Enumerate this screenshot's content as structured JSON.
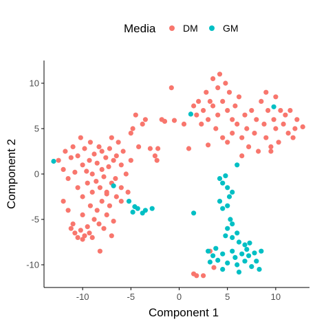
{
  "chart_data": {
    "type": "scatter",
    "xlabel": "Component 1",
    "ylabel": "Component 2",
    "xlim": [
      -14,
      13.5
    ],
    "ylim": [
      -12.5,
      12.5
    ],
    "xticks": [
      -10,
      -5,
      0,
      5,
      10
    ],
    "yticks": [
      -10,
      -5,
      0,
      5,
      10
    ],
    "grid": false,
    "legend": {
      "title": "Media",
      "position": "top"
    },
    "series": [
      {
        "name": "DM",
        "color": "#F8766D",
        "points": [
          [
            -12.5,
            1.5
          ],
          [
            -12,
            0.5
          ],
          [
            -11.8,
            2.5
          ],
          [
            -11.5,
            -0.5
          ],
          [
            -11.2,
            1.8
          ],
          [
            -11,
            3
          ],
          [
            -10.8,
            0.2
          ],
          [
            -10.5,
            2
          ],
          [
            -10.5,
            -1.5
          ],
          [
            -10.2,
            4
          ],
          [
            -10,
            1
          ],
          [
            -10,
            -2.5
          ],
          [
            -9.8,
            2.8
          ],
          [
            -9.6,
            0.3
          ],
          [
            -9.5,
            -1
          ],
          [
            -9.3,
            1.5
          ],
          [
            -9.2,
            3.5
          ],
          [
            -9,
            0
          ],
          [
            -9,
            -2
          ],
          [
            -8.8,
            2.2
          ],
          [
            -8.6,
            -0.8
          ],
          [
            -8.5,
            1.2
          ],
          [
            -8.3,
            3
          ],
          [
            -8.2,
            -1.5
          ],
          [
            -8,
            0.5
          ],
          [
            -8,
            2.5
          ],
          [
            -7.8,
            -0.3
          ],
          [
            -7.6,
            1.8
          ],
          [
            -7.5,
            -2.2
          ],
          [
            -7.3,
            0.8
          ],
          [
            -7.2,
            2.8
          ],
          [
            -7,
            -1
          ],
          [
            -7,
            4
          ],
          [
            -6.8,
            1.5
          ],
          [
            -6.6,
            -0.5
          ],
          [
            -6.5,
            2
          ],
          [
            -6.3,
            3.5
          ],
          [
            -6,
            1
          ],
          [
            -6,
            -1.5
          ],
          [
            -5.8,
            2.5
          ],
          [
            -5.5,
            0
          ],
          [
            -5.3,
            -2
          ],
          [
            -5,
            4.5
          ],
          [
            -5,
            1.5
          ],
          [
            -4.8,
            5
          ],
          [
            -4.5,
            6.5
          ],
          [
            -4.2,
            3
          ],
          [
            -3.8,
            5.5
          ],
          [
            -3.5,
            6
          ],
          [
            -3,
            2.8
          ],
          [
            -2.5,
            2
          ],
          [
            -2.3,
            1.5
          ],
          [
            -2.2,
            2.8
          ],
          [
            -12,
            -3
          ],
          [
            -11.5,
            -4
          ],
          [
            -11,
            -5.5
          ],
          [
            -11.2,
            -6
          ],
          [
            -10.8,
            -6.5
          ],
          [
            -10.5,
            -7
          ],
          [
            -10.2,
            -6.2
          ],
          [
            -10,
            -7.2
          ],
          [
            -9.8,
            -6.8
          ],
          [
            -9.5,
            -5.8
          ],
          [
            -9.3,
            -6.5
          ],
          [
            -9,
            -7
          ],
          [
            -8.8,
            -5
          ],
          [
            -8.5,
            -4
          ],
          [
            -8.3,
            -5.5
          ],
          [
            -8,
            -3
          ],
          [
            -7.8,
            -6
          ],
          [
            -7.5,
            -4.5
          ],
          [
            -7.2,
            -3.5
          ],
          [
            -7,
            -6.8
          ],
          [
            -6.8,
            -5.2
          ],
          [
            -6.5,
            -2.5
          ],
          [
            -8.2,
            -8.5
          ],
          [
            -10,
            -4.5
          ],
          [
            -9.2,
            -3.5
          ],
          [
            -7.5,
            -2
          ],
          [
            -6,
            -3
          ],
          [
            -0.8,
            9.5
          ],
          [
            1.5,
            7.5
          ],
          [
            1.8,
            6.5
          ],
          [
            2,
            8
          ],
          [
            2.3,
            5.5
          ],
          [
            2.5,
            7
          ],
          [
            2.8,
            9
          ],
          [
            3,
            6
          ],
          [
            3.2,
            8
          ],
          [
            3.5,
            10.5
          ],
          [
            3.5,
            7.5
          ],
          [
            3.8,
            5
          ],
          [
            4,
            9.5
          ],
          [
            4,
            6.5
          ],
          [
            4.2,
            11
          ],
          [
            4.5,
            8
          ],
          [
            4.5,
            4
          ],
          [
            4.8,
            10
          ],
          [
            5,
            7
          ],
          [
            5,
            3.5
          ],
          [
            5.2,
            9
          ],
          [
            5.5,
            6
          ],
          [
            5.5,
            4.5
          ],
          [
            5.8,
            7.5
          ],
          [
            6,
            5.5
          ],
          [
            6.2,
            8.5
          ],
          [
            6.5,
            4
          ],
          [
            6.8,
            6.5
          ],
          [
            7,
            5
          ],
          [
            7.2,
            3
          ],
          [
            7.5,
            7
          ],
          [
            7.8,
            4.5
          ],
          [
            8,
            6
          ],
          [
            8.2,
            2.5
          ],
          [
            8.5,
            8
          ],
          [
            8.8,
            5.5
          ],
          [
            9,
            9
          ],
          [
            9,
            4
          ],
          [
            9.2,
            7
          ],
          [
            9.5,
            3
          ],
          [
            9.8,
            6
          ],
          [
            10,
            8.5
          ],
          [
            10,
            5
          ],
          [
            10.3,
            3.5
          ],
          [
            10.5,
            7
          ],
          [
            10.8,
            5.5
          ],
          [
            11,
            6.5
          ],
          [
            11.3,
            4.5
          ],
          [
            11.5,
            7
          ],
          [
            12,
            5
          ],
          [
            12.2,
            6
          ],
          [
            12.8,
            5.2
          ],
          [
            11.8,
            4
          ],
          [
            9.5,
            2.5
          ],
          [
            6.5,
            2
          ],
          [
            3,
            3.2
          ],
          [
            -1.8,
            6
          ],
          [
            -1.5,
            5.8
          ],
          [
            -0.5,
            5.9
          ],
          [
            0.5,
            5.5
          ],
          [
            1,
            2.8
          ],
          [
            1.5,
            -11
          ],
          [
            1.8,
            -11.2
          ],
          [
            2.5,
            -11.2
          ],
          [
            3.2,
            -8.5
          ],
          [
            3.6,
            -10.3
          ]
        ]
      },
      {
        "name": "GM",
        "color": "#00BFC4",
        "points": [
          [
            -13,
            1.4
          ],
          [
            -6.8,
            -1.3
          ],
          [
            -5.2,
            -3
          ],
          [
            -4.8,
            -4.2
          ],
          [
            -4.6,
            -3.6
          ],
          [
            -4.3,
            -3.8
          ],
          [
            -3.8,
            -4.3
          ],
          [
            -3.5,
            -4
          ],
          [
            -2.8,
            -3.8
          ],
          [
            1.2,
            6.6
          ],
          [
            1.5,
            -4.3
          ],
          [
            6,
            1
          ],
          [
            9.8,
            7.4
          ],
          [
            4.2,
            -0.5
          ],
          [
            4.5,
            -1
          ],
          [
            4.8,
            -0.2
          ],
          [
            5,
            -1.5
          ],
          [
            5.2,
            -2.5
          ],
          [
            4.2,
            -3
          ],
          [
            4.5,
            -3.8
          ],
          [
            5,
            -3.5
          ],
          [
            5.5,
            -2
          ],
          [
            5.3,
            -5
          ],
          [
            5.5,
            -5.5
          ],
          [
            5,
            -6
          ],
          [
            4.8,
            -6.8
          ],
          [
            5.5,
            -7
          ],
          [
            6,
            -6.5
          ],
          [
            6.2,
            -7.5
          ],
          [
            3,
            -8.5
          ],
          [
            3.5,
            -9
          ],
          [
            3.8,
            -8.2
          ],
          [
            4,
            -9.5
          ],
          [
            4.5,
            -8.8
          ],
          [
            5,
            -9.8
          ],
          [
            5.5,
            -8.5
          ],
          [
            5.8,
            -9.2
          ],
          [
            6,
            -10
          ],
          [
            6.5,
            -8.8
          ],
          [
            6.8,
            -9.6
          ],
          [
            7,
            -8.3
          ],
          [
            7.2,
            -9
          ],
          [
            7.5,
            -10.2
          ],
          [
            7.8,
            -8.7
          ],
          [
            8,
            -9.6
          ],
          [
            8.5,
            -8.5
          ],
          [
            8.3,
            -10.5
          ],
          [
            6.2,
            -10.8
          ],
          [
            4.5,
            -10.5
          ],
          [
            3.2,
            -9.7
          ],
          [
            6.8,
            -7.8
          ],
          [
            7.3,
            -7.6
          ]
        ]
      }
    ]
  }
}
